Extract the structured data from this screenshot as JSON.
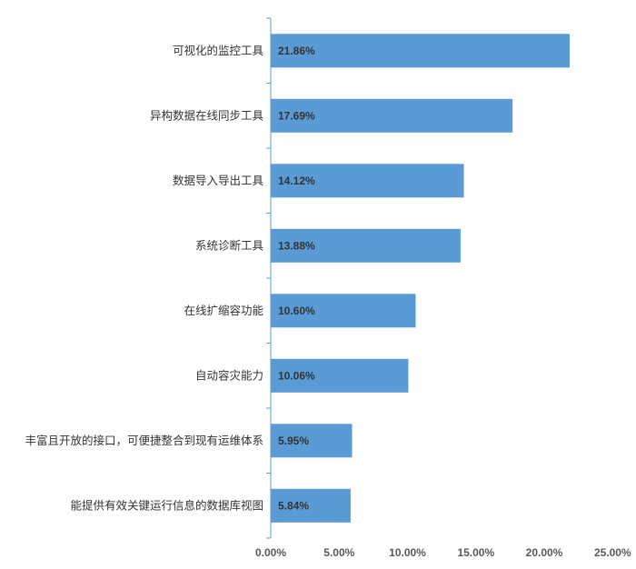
{
  "chart_data": {
    "type": "bar",
    "orientation": "horizontal",
    "categories": [
      "可视化的监控工具",
      "异构数据在线同步工具",
      "数据导入导出工具",
      "系统诊断工具",
      "在线扩缩容功能",
      "自动容灾能力",
      "丰富且开放的接口，可便捷整合到现有运维体系",
      "能提供有效关键运行信息的数据库视图"
    ],
    "values": [
      21.86,
      17.69,
      14.12,
      13.88,
      10.6,
      10.06,
      5.95,
      5.84
    ],
    "value_labels": [
      "21.86%",
      "17.69%",
      "14.12%",
      "13.88%",
      "10.60%",
      "10.06%",
      "5.95%",
      "5.84%"
    ],
    "xlim": [
      0,
      25
    ],
    "x_ticks": [
      0,
      5,
      10,
      15,
      20,
      25
    ],
    "x_tick_labels": [
      "0.00%",
      "5.00%",
      "10.00%",
      "15.00%",
      "20.00%",
      "25.00%"
    ],
    "title": "",
    "xlabel": "",
    "ylabel": "",
    "grid": false,
    "legend": "none",
    "colors": {
      "bar": "#5B9BD5",
      "axis": "#5B9BD5",
      "text": "#333333",
      "tick_text": "#595959"
    }
  }
}
